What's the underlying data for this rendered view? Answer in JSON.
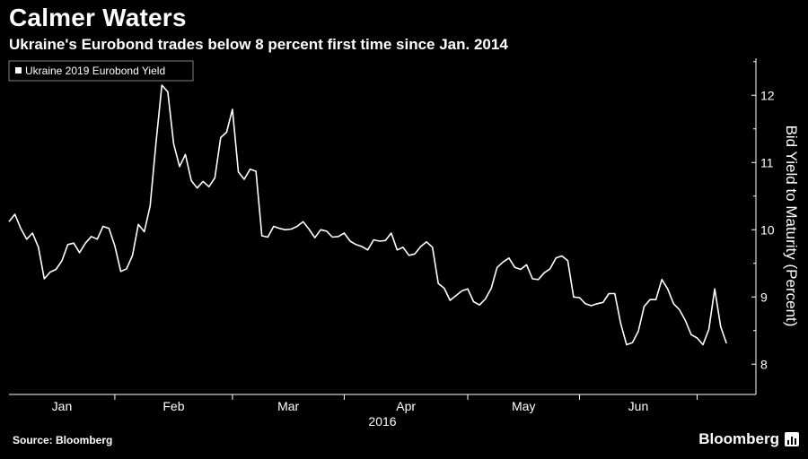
{
  "header": {
    "title": "Calmer Waters",
    "subtitle": "Ukraine's Eurobond trades below 8 percent first time since Jan. 2014"
  },
  "footer": {
    "source": "Source: Bloomberg",
    "brand": "Bloomberg",
    "brand_icon": "bloomberg-chart-icon"
  },
  "colors": {
    "background": "#000000",
    "line": "#ffffff",
    "axis": "#ffffff"
  },
  "chart_data": {
    "type": "line",
    "title": "Calmer Waters",
    "subtitle": "Ukraine's Eurobond trades below 8 percent first time since Jan. 2014",
    "ylabel": "Bid Yield to Maturity (Percent)",
    "xlabel": "2016",
    "ylim": [
      7.55,
      12.55
    ],
    "yticks": [
      8,
      9,
      10,
      11,
      12
    ],
    "x_range": [
      0,
      127
    ],
    "grid": false,
    "legend": {
      "position": "top-left",
      "entries": [
        "Ukraine 2019 Eurobond Yield"
      ]
    },
    "month_labels": [
      {
        "label": "Jan",
        "x": 9
      },
      {
        "label": "Feb",
        "x": 28
      },
      {
        "label": "Mar",
        "x": 47.5
      },
      {
        "label": "Apr",
        "x": 67.5
      },
      {
        "label": "May",
        "x": 87.5
      },
      {
        "label": "Jun",
        "x": 107
      }
    ],
    "month_boundaries": [
      18,
      38,
      57,
      78,
      97,
      117
    ],
    "year_label": "2016",
    "series": [
      {
        "name": "Ukraine 2019 Eurobond Yield",
        "x": [
          0,
          1,
          2,
          3,
          4,
          5,
          6,
          7,
          8,
          9,
          10,
          11,
          12,
          13,
          14,
          15,
          16,
          17,
          18,
          19,
          20,
          21,
          22,
          23,
          24,
          25,
          26,
          27,
          28,
          29,
          30,
          31,
          32,
          33,
          34,
          35,
          36,
          37,
          38,
          39,
          40,
          41,
          42,
          43,
          44,
          45,
          46,
          47,
          48,
          49,
          50,
          51,
          52,
          53,
          54,
          55,
          56,
          57,
          58,
          59,
          60,
          61,
          62,
          63,
          64,
          65,
          66,
          67,
          68,
          69,
          70,
          71,
          72,
          73,
          74,
          75,
          76,
          77,
          78,
          79,
          80,
          81,
          82,
          83,
          84,
          85,
          86,
          87,
          88,
          89,
          90,
          91,
          92,
          93,
          94,
          95,
          96,
          97,
          98,
          99,
          100,
          101,
          102,
          103,
          104,
          105,
          106,
          107,
          108,
          109,
          110,
          111,
          112,
          113,
          114,
          115,
          116,
          117,
          118,
          119,
          120,
          121,
          122
        ],
        "values": [
          10.12,
          10.23,
          10.02,
          9.86,
          9.95,
          9.74,
          9.27,
          9.37,
          9.41,
          9.54,
          9.78,
          9.8,
          9.66,
          9.8,
          9.9,
          9.86,
          10.05,
          10.02,
          9.76,
          9.38,
          9.42,
          9.62,
          10.08,
          9.97,
          10.35,
          11.3,
          12.15,
          12.05,
          11.28,
          10.94,
          11.12,
          10.73,
          10.62,
          10.72,
          10.64,
          10.77,
          11.37,
          11.45,
          11.79,
          10.86,
          10.75,
          10.9,
          10.87,
          9.91,
          9.89,
          10.05,
          10.02,
          10.0,
          10.01,
          10.05,
          10.12,
          10.01,
          9.88,
          10.0,
          9.98,
          9.89,
          9.9,
          9.95,
          9.83,
          9.78,
          9.75,
          9.7,
          9.85,
          9.83,
          9.84,
          9.95,
          9.7,
          9.74,
          9.62,
          9.64,
          9.75,
          9.82,
          9.74,
          9.2,
          9.13,
          8.95,
          9.02,
          9.09,
          9.12,
          8.93,
          8.88,
          8.97,
          9.13,
          9.44,
          9.52,
          9.58,
          9.44,
          9.41,
          9.48,
          9.27,
          9.26,
          9.36,
          9.42,
          9.58,
          9.61,
          9.54,
          9.0,
          8.99,
          8.9,
          8.87,
          8.9,
          8.92,
          9.05,
          9.05,
          8.61,
          8.29,
          8.32,
          8.49,
          8.86,
          8.96,
          8.96,
          9.26,
          9.12,
          8.9,
          8.81,
          8.65,
          8.44,
          8.39,
          8.29,
          8.52,
          9.12,
          8.56,
          8.31
        ]
      }
    ]
  }
}
